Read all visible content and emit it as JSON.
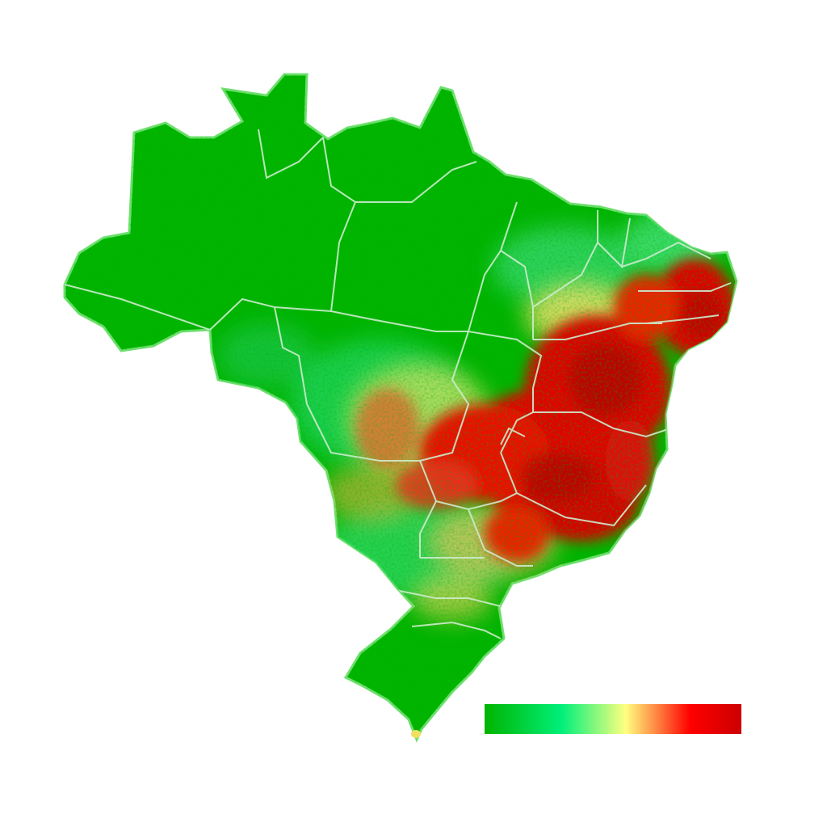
{
  "map": {
    "region": "Brazil",
    "base_color": "#00b400",
    "border_color": "#c8f0c8",
    "hotspot_colors": [
      "#ff0000",
      "#d40000",
      "#ff8000",
      "#ffff80",
      "#00ff7f"
    ]
  },
  "legend": {
    "gradient": [
      "#00b400",
      "#00f07a",
      "#ffff80",
      "#ff0000",
      "#cc0000"
    ],
    "labels": []
  }
}
